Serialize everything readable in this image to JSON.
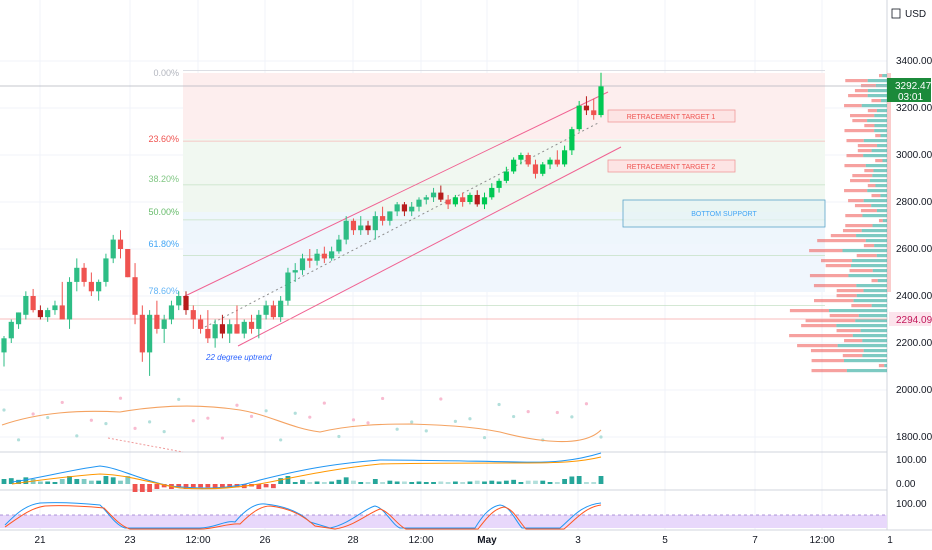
{
  "price_axis": {
    "currency": "USD",
    "ticks": [
      "3400.00",
      "3200.00",
      "3000.00",
      "2800.00",
      "2600.00",
      "2400.00",
      "2200.00",
      "2000.00",
      "1800.00"
    ],
    "last_price_label": "3292.47",
    "countdown_label": "03:01",
    "marker_label": "2294.09"
  },
  "time_axis": {
    "ticks": [
      "21",
      "23",
      "12:00",
      "26",
      "28",
      "12:00",
      "May",
      "3",
      "5",
      "7",
      "12:00",
      "1"
    ]
  },
  "fib_levels": [
    {
      "label": "0.00%",
      "price": 3360
    },
    {
      "label": "23.60%",
      "price": 3059
    },
    {
      "label": "38.20%",
      "price": 2873
    },
    {
      "label": "50.00%",
      "price": 2724
    },
    {
      "label": "61.80%",
      "price": 2573
    },
    {
      "label": "78.60%",
      "price": 2359
    }
  ],
  "annotations": {
    "target1": "RETRACEMENT TARGET 1",
    "target2": "RETRACEMENT TARGET 2",
    "support": "BOTTOM SUPPORT",
    "trend": "22 degree uptrend"
  },
  "indicator_ticks": {
    "macd": [
      "100.00",
      "0.00"
    ],
    "stoch": [
      "100.00"
    ]
  },
  "colors": {
    "up": "#26a69a",
    "up_bright": "#00c853",
    "down": "#ef5350",
    "down_dark": "#b71c1c",
    "channel": "#f06292",
    "fib_axis": "#f7a8a8"
  },
  "chart_data": {
    "type": "candlestick",
    "ylim": [
      1600,
      3560
    ],
    "fields": [
      "open",
      "high",
      "low",
      "close"
    ],
    "candles": [
      [
        2160,
        2230,
        2100,
        2220
      ],
      [
        2220,
        2300,
        2200,
        2290
      ],
      [
        2280,
        2330,
        2260,
        2330
      ],
      [
        2320,
        2420,
        2300,
        2400
      ],
      [
        2400,
        2430,
        2330,
        2340
      ],
      [
        2340,
        2360,
        2300,
        2310
      ],
      [
        2310,
        2350,
        2290,
        2340
      ],
      [
        2340,
        2380,
        2320,
        2360
      ],
      [
        2360,
        2460,
        2300,
        2300
      ],
      [
        2300,
        2480,
        2260,
        2460
      ],
      [
        2460,
        2560,
        2420,
        2520
      ],
      [
        2520,
        2540,
        2440,
        2460
      ],
      [
        2460,
        2500,
        2400,
        2420
      ],
      [
        2420,
        2470,
        2380,
        2460
      ],
      [
        2460,
        2580,
        2440,
        2560
      ],
      [
        2560,
        2660,
        2540,
        2640
      ],
      [
        2640,
        2680,
        2560,
        2600
      ],
      [
        2600,
        2600,
        2480,
        2480
      ],
      [
        2480,
        2540,
        2280,
        2320
      ],
      [
        2320,
        2360,
        2120,
        2160
      ],
      [
        2160,
        2340,
        2060,
        2320
      ],
      [
        2320,
        2380,
        2240,
        2260
      ],
      [
        2260,
        2320,
        2200,
        2300
      ],
      [
        2300,
        2380,
        2280,
        2360
      ],
      [
        2360,
        2420,
        2340,
        2400
      ],
      [
        2400,
        2420,
        2320,
        2340
      ],
      [
        2340,
        2360,
        2260,
        2300
      ],
      [
        2300,
        2320,
        2240,
        2260
      ],
      [
        2260,
        2340,
        2200,
        2220
      ],
      [
        2220,
        2300,
        2180,
        2280
      ],
      [
        2280,
        2320,
        2220,
        2240
      ],
      [
        2240,
        2300,
        2200,
        2280
      ],
      [
        2280,
        2360,
        2240,
        2240
      ],
      [
        2240,
        2300,
        2220,
        2290
      ],
      [
        2290,
        2320,
        2240,
        2260
      ],
      [
        2260,
        2340,
        2220,
        2320
      ],
      [
        2320,
        2380,
        2300,
        2360
      ],
      [
        2360,
        2380,
        2300,
        2310
      ],
      [
        2310,
        2400,
        2290,
        2380
      ],
      [
        2380,
        2520,
        2360,
        2500
      ],
      [
        2500,
        2540,
        2460,
        2510
      ],
      [
        2510,
        2580,
        2490,
        2560
      ],
      [
        2560,
        2600,
        2520,
        2550
      ],
      [
        2550,
        2600,
        2530,
        2580
      ],
      [
        2580,
        2610,
        2540,
        2560
      ],
      [
        2560,
        2610,
        2550,
        2590
      ],
      [
        2590,
        2660,
        2580,
        2640
      ],
      [
        2640,
        2740,
        2620,
        2720
      ],
      [
        2720,
        2730,
        2660,
        2680
      ],
      [
        2680,
        2740,
        2660,
        2700
      ],
      [
        2700,
        2720,
        2660,
        2680
      ],
      [
        2680,
        2760,
        2640,
        2740
      ],
      [
        2740,
        2780,
        2700,
        2720
      ],
      [
        2720,
        2760,
        2700,
        2760
      ],
      [
        2760,
        2800,
        2740,
        2790
      ],
      [
        2790,
        2800,
        2740,
        2760
      ],
      [
        2760,
        2800,
        2740,
        2780
      ],
      [
        2780,
        2820,
        2760,
        2810
      ],
      [
        2810,
        2830,
        2790,
        2820
      ],
      [
        2820,
        2860,
        2800,
        2840
      ],
      [
        2840,
        2870,
        2800,
        2810
      ],
      [
        2810,
        2830,
        2770,
        2790
      ],
      [
        2790,
        2830,
        2780,
        2820
      ],
      [
        2820,
        2840,
        2780,
        2800
      ],
      [
        2800,
        2840,
        2790,
        2830
      ],
      [
        2830,
        2850,
        2780,
        2790
      ],
      [
        2790,
        2840,
        2770,
        2820
      ],
      [
        2820,
        2880,
        2810,
        2860
      ],
      [
        2860,
        2900,
        2840,
        2890
      ],
      [
        2890,
        2950,
        2880,
        2930
      ],
      [
        2930,
        2990,
        2920,
        2980
      ],
      [
        2980,
        3010,
        2960,
        3000
      ],
      [
        3000,
        3010,
        2950,
        2960
      ],
      [
        2960,
        2980,
        2900,
        2920
      ],
      [
        2920,
        2970,
        2910,
        2960
      ],
      [
        2960,
        2990,
        2940,
        2980
      ],
      [
        2980,
        3020,
        2950,
        2960
      ],
      [
        2960,
        3040,
        2950,
        3020
      ],
      [
        3020,
        3120,
        3000,
        3110
      ],
      [
        3110,
        3230,
        3100,
        3210
      ],
      [
        3210,
        3250,
        3170,
        3190
      ],
      [
        3190,
        3240,
        3150,
        3170
      ],
      [
        3170,
        3350,
        3160,
        3292
      ]
    ]
  }
}
